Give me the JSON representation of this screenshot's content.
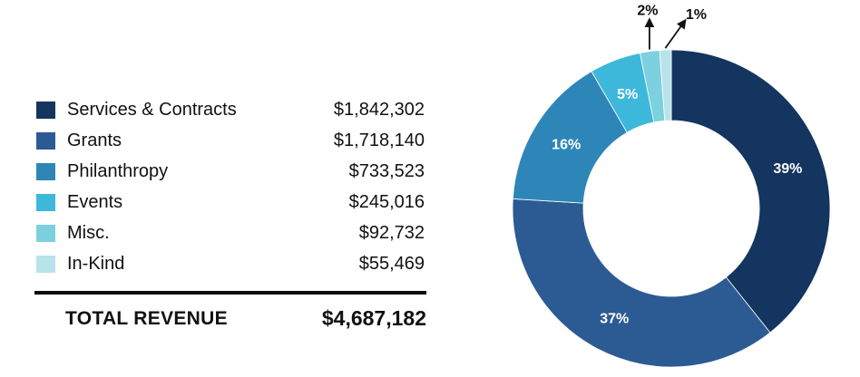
{
  "legend": {
    "items": [
      {
        "label": "Services & Contracts",
        "value": "$1,842,302",
        "color": "#14355f"
      },
      {
        "label": "Grants",
        "value": "$1,718,140",
        "color": "#2c5b94"
      },
      {
        "label": "Philanthropy",
        "value": "$733,523",
        "color": "#2e86b8"
      },
      {
        "label": "Events",
        "value": "$245,016",
        "color": "#3db8db"
      },
      {
        "label": "Misc.",
        "value": "$92,732",
        "color": "#7dd0dd"
      },
      {
        "label": "In-Kind",
        "value": "$55,469",
        "color": "#b9e3ea"
      }
    ]
  },
  "total": {
    "label": "TOTAL  REVENUE",
    "value": "$4,687,182"
  },
  "chart_data": {
    "type": "pie",
    "title": "",
    "categories": [
      "Services & Contracts",
      "Grants",
      "Philanthropy",
      "Events",
      "Misc.",
      "In-Kind"
    ],
    "values": [
      1842302,
      1718140,
      733523,
      245016,
      92732,
      55469
    ],
    "percent_labels": [
      "39%",
      "37%",
      "16%",
      "5%",
      "2%",
      "1%"
    ],
    "colors": [
      "#14355f",
      "#2c5b94",
      "#2e86b8",
      "#3db8db",
      "#7dd0dd",
      "#b9e3ea"
    ],
    "label_colors": [
      "#ffffff",
      "#ffffff",
      "#ffffff",
      "#ffffff",
      "#111111",
      "#111111"
    ],
    "external_labels": [
      false,
      false,
      false,
      false,
      true,
      true
    ],
    "donut": true,
    "start": "top, clockwise"
  }
}
